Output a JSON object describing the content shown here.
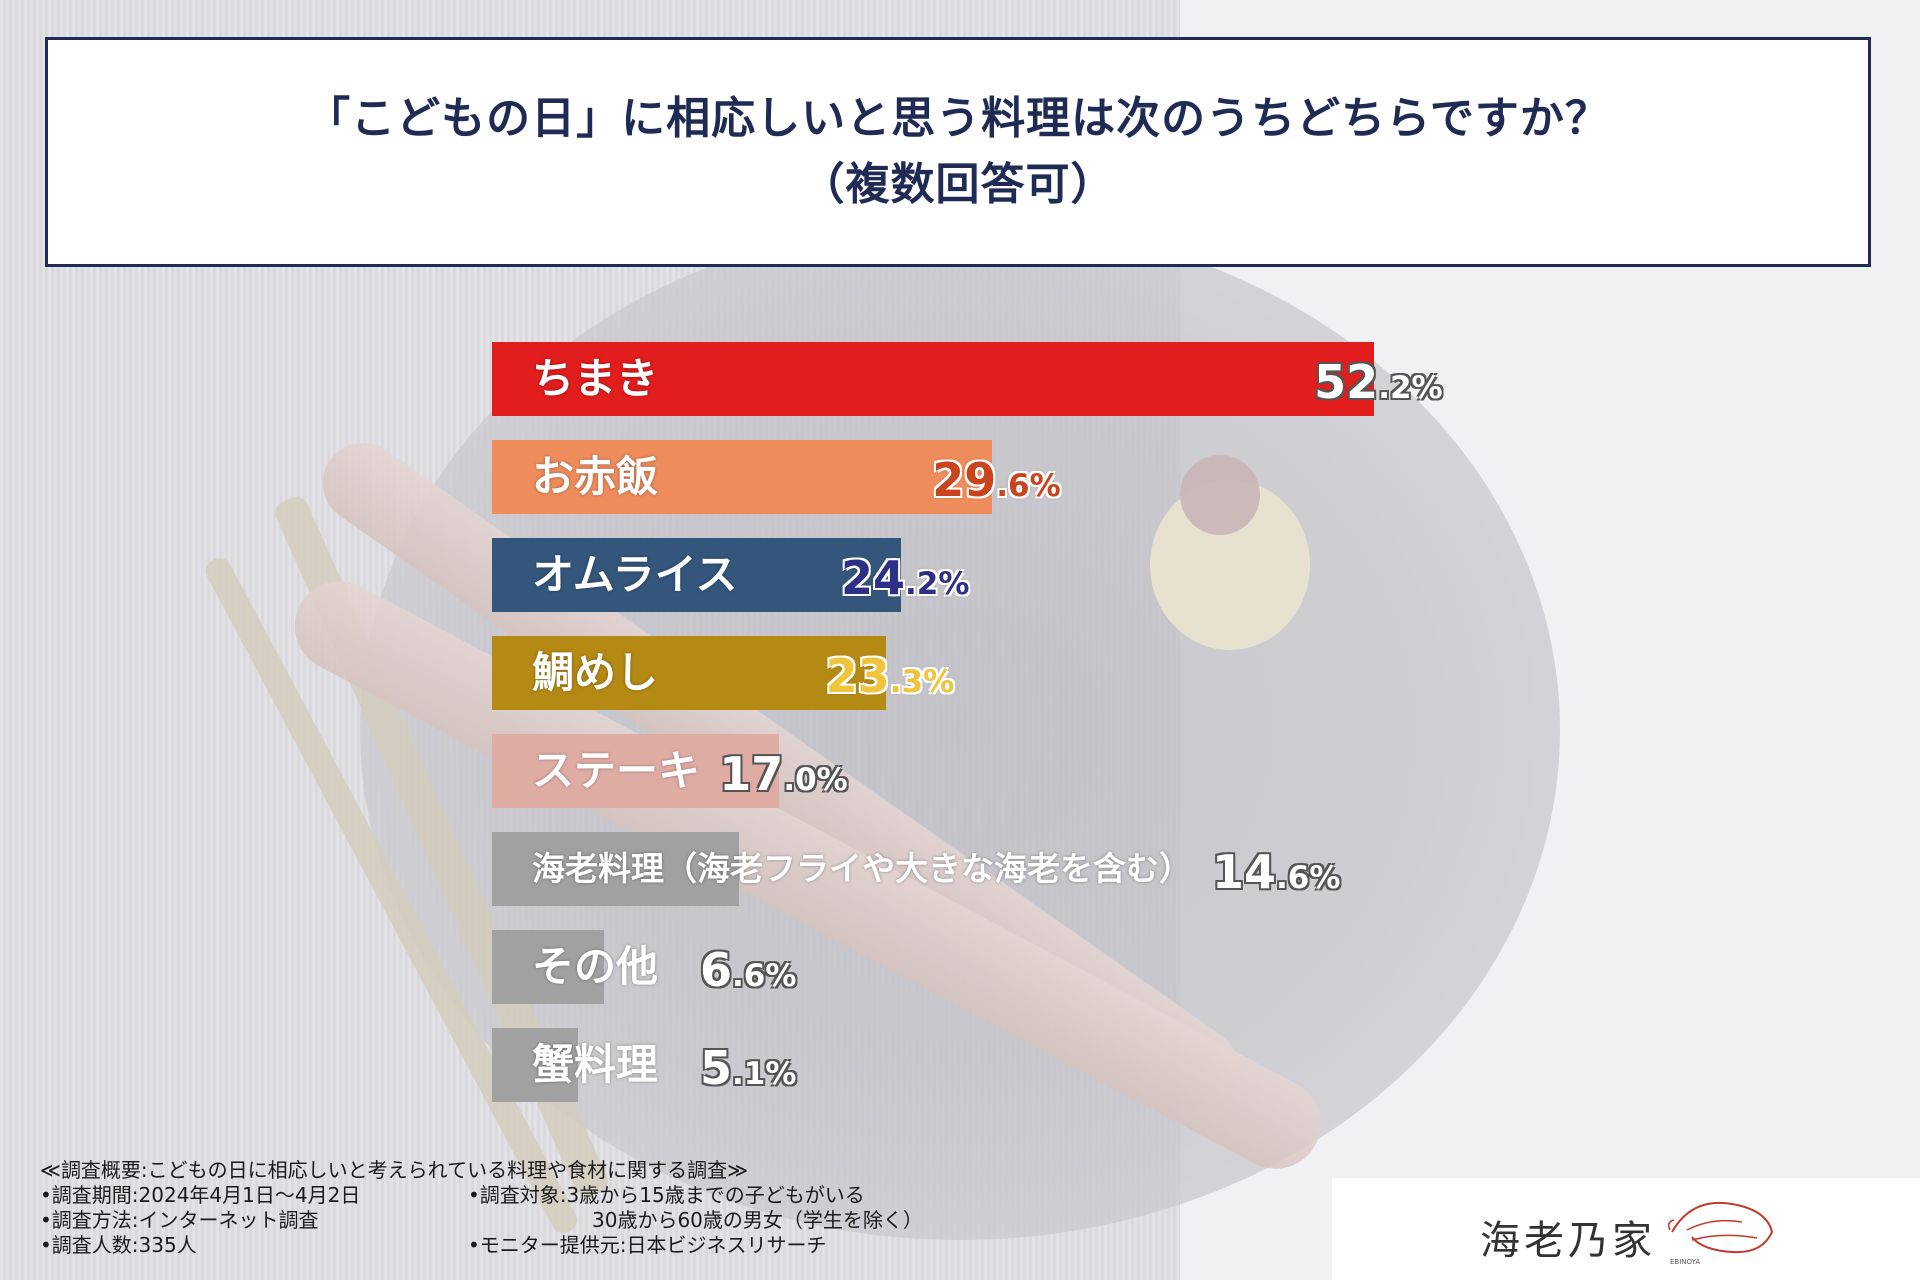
{
  "title": {
    "line1": "「こどもの日」に相応しいと思う料理は次のうちどちらですか？",
    "line2": "（複数回答可）"
  },
  "chart_data": {
    "type": "bar",
    "orientation": "horizontal",
    "categories": [
      "ちまき",
      "お赤飯",
      "オムライス",
      "鯛めし",
      "ステーキ",
      "海老料理（海老フライや大きな海老を含む）",
      "その他",
      "蟹料理"
    ],
    "values": [
      52.2,
      29.6,
      24.2,
      23.3,
      17.0,
      14.6,
      6.6,
      5.1
    ],
    "value_labels": [
      {
        "main": "52",
        "dec": ".2%"
      },
      {
        "main": "29",
        "dec": ".6%"
      },
      {
        "main": "24",
        "dec": ".2%"
      },
      {
        "main": "23",
        "dec": ".3%"
      },
      {
        "main": "17",
        "dec": ".0%"
      },
      {
        "main": "14",
        "dec": ".6%"
      },
      {
        "main": "6",
        "dec": ".6%"
      },
      {
        "main": "5",
        "dec": ".1%"
      }
    ],
    "bar_colors": [
      "#e11d1d",
      "#ee8c5c",
      "#34567c",
      "#b58a14",
      "#dfaca4",
      "#a1a1a1",
      "#a1a1a1",
      "#a1a1a1"
    ],
    "value_colors": [
      "#ffffff",
      "#c9441c",
      "#2e2f86",
      "#f1c33b",
      "#ffffff",
      "#ffffff",
      "#ffffff",
      "#ffffff"
    ],
    "unit": "%",
    "xlim": [
      0,
      100
    ]
  },
  "footer": {
    "heading": "≪調査概要:こどもの日に相応しいと考えられている料理や食材に関する調査≫",
    "period": "•調査期間:2024年4月1日～4月2日",
    "method": "•調査方法:インターネット調査",
    "count": "•調査人数:335人",
    "target1": "•調査対象:3歳から15歳までの子どもがいる",
    "target2": "30歳から60歳の男女（学生を除く）",
    "provider": "•モニター提供元:日本ビジネスリサーチ"
  },
  "logo": {
    "name": "海老乃家",
    "sub": "EBINOYA"
  }
}
